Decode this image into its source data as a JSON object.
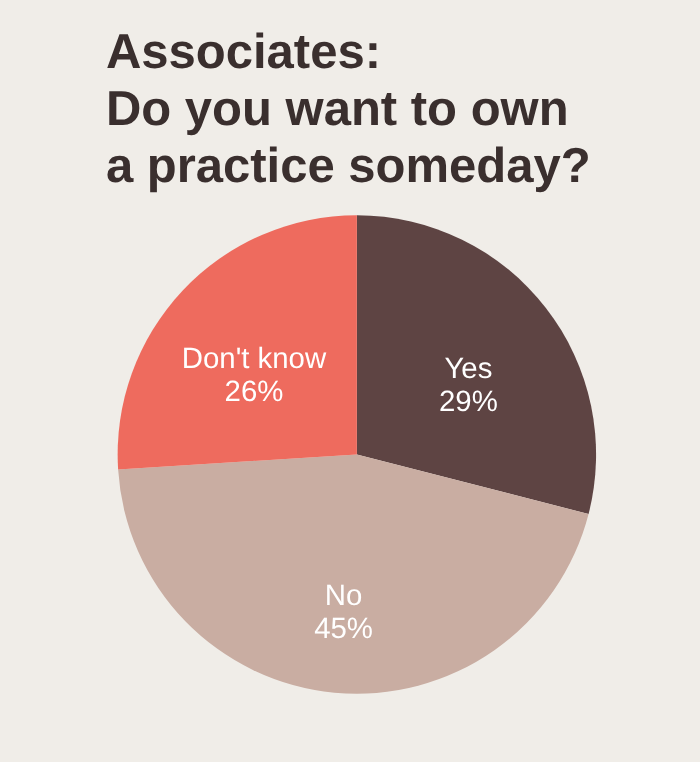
{
  "chart_data": {
    "type": "pie",
    "title": "Associates:\nDo you want to own\na practice someday?",
    "categories": [
      "Yes",
      "No",
      "Don't know"
    ],
    "values": [
      29,
      45,
      26
    ],
    "value_labels": [
      "29%",
      "45%",
      "26%"
    ],
    "colors": [
      "#5e4443",
      "#c9ada2",
      "#ee6b5e"
    ]
  }
}
